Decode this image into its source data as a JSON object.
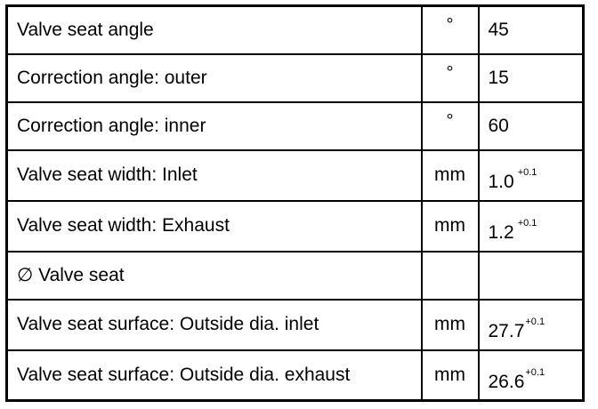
{
  "table": {
    "rows": [
      {
        "label": "Valve seat angle",
        "unit": "°",
        "value": "45",
        "tolerance": ""
      },
      {
        "label": "Correction angle: outer",
        "unit": "°",
        "value": "15",
        "tolerance": ""
      },
      {
        "label": "Correction angle: inner",
        "unit": "°",
        "value": "60",
        "tolerance": ""
      },
      {
        "label": "Valve seat width: Inlet",
        "unit": "mm",
        "value": "1.0",
        "tolerance": "+0.1"
      },
      {
        "label": "Valve seat width: Exhaust",
        "unit": "mm",
        "value": "1.2",
        "tolerance": "+0.1"
      },
      {
        "label": "∅ Valve seat",
        "unit": "",
        "value": "",
        "tolerance": ""
      },
      {
        "label": "Valve seat surface: Outside dia. inlet",
        "unit": "mm",
        "value": "27.7",
        "tolerance": "+0.1"
      },
      {
        "label": "Valve seat surface: Outside dia. exhaust",
        "unit": "mm",
        "value": "26.6",
        "tolerance": "+0.1"
      }
    ]
  }
}
